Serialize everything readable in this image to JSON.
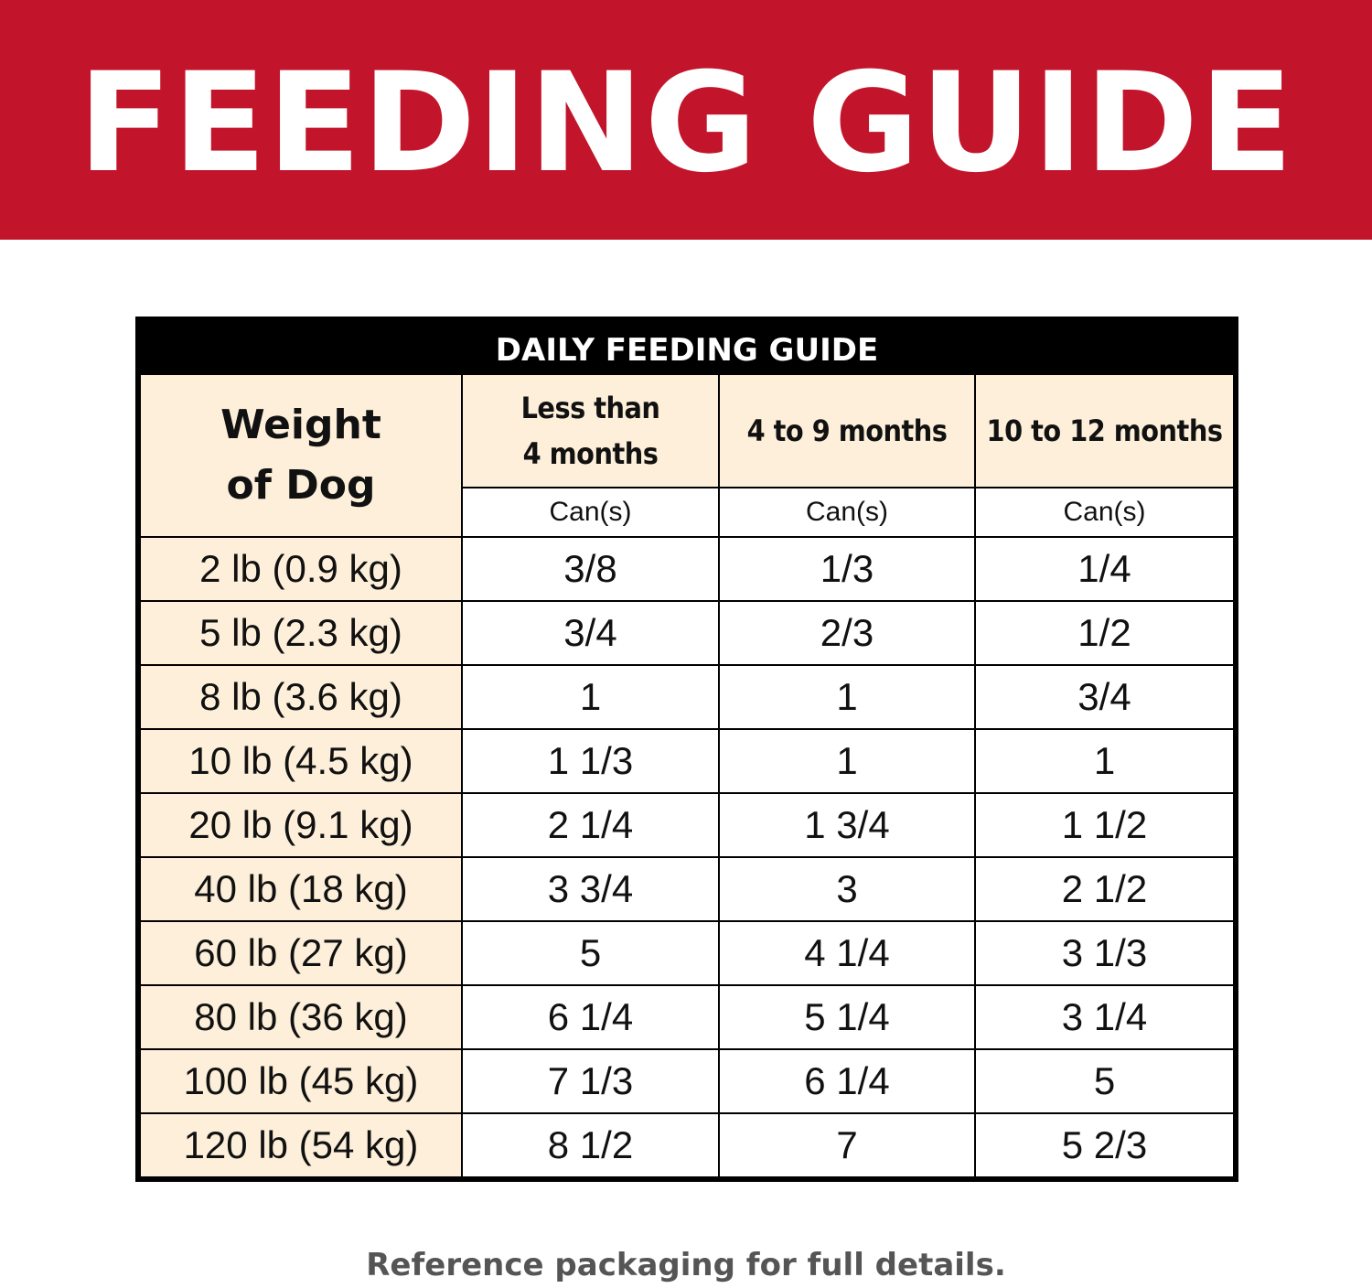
{
  "banner": {
    "title": "FEEDING GUIDE",
    "background_color": "#c2152b",
    "text_color": "#ffffff"
  },
  "table": {
    "title": "DAILY FEEDING GUIDE",
    "weight_header": [
      "Weight",
      "of Dog"
    ],
    "age_headers": [
      [
        "Less than",
        "4 months"
      ],
      [
        "4 to 9 months"
      ],
      [
        "10 to 12 months"
      ]
    ],
    "unit_label": "Can(s)",
    "header_background_color": "#fdefd9",
    "rows": [
      {
        "weight": "2 lb (0.9 kg)",
        "values": [
          "3/8",
          "1/3",
          "1/4"
        ]
      },
      {
        "weight": "5 lb (2.3 kg)",
        "values": [
          "3/4",
          "2/3",
          "1/2"
        ]
      },
      {
        "weight": "8 lb (3.6 kg)",
        "values": [
          "1",
          "1",
          "3/4"
        ]
      },
      {
        "weight": "10 lb (4.5 kg)",
        "values": [
          "1 1/3",
          "1",
          "1"
        ]
      },
      {
        "weight": "20 lb (9.1 kg)",
        "values": [
          "2 1/4",
          "1 3/4",
          "1 1/2"
        ]
      },
      {
        "weight": "40 lb (18 kg)",
        "values": [
          "3 3/4",
          "3",
          "2 1/2"
        ]
      },
      {
        "weight": "60 lb (27 kg)",
        "values": [
          "5",
          "4 1/4",
          "3 1/3"
        ]
      },
      {
        "weight": "80 lb (36 kg)",
        "values": [
          "6 1/4",
          "5 1/4",
          "3 1/4"
        ]
      },
      {
        "weight": "100 lb (45 kg)",
        "values": [
          "7 1/3",
          "6 1/4",
          "5"
        ]
      },
      {
        "weight": "120 lb (54 kg)",
        "values": [
          "8 1/2",
          "7",
          "5 2/3"
        ]
      }
    ]
  },
  "footer": {
    "note": "Reference packaging for full details."
  }
}
